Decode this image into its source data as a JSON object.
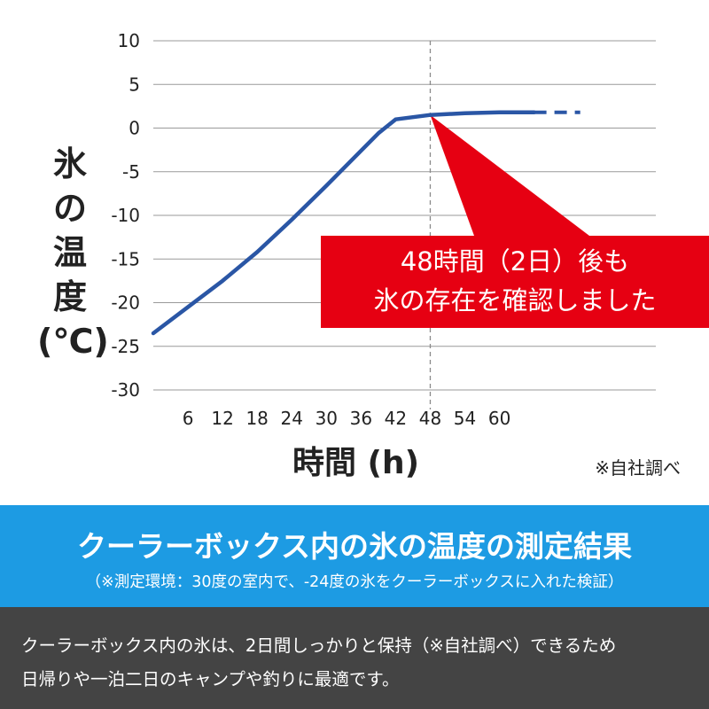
{
  "chart_data": {
    "type": "line",
    "ylabel": "氷の温度(℃)",
    "xlabel": "時間 (h)",
    "x_ticks": [
      6,
      12,
      18,
      24,
      30,
      36,
      42,
      48,
      54,
      60
    ],
    "y_ticks": [
      10,
      5,
      0,
      -5,
      -10,
      -15,
      -20,
      -25,
      -30
    ],
    "xlim": [
      0,
      66
    ],
    "ylim": [
      -30,
      10
    ],
    "grid": "horizontal",
    "series": [
      {
        "color": "#2a56a5",
        "points": [
          [
            0,
            -23.5
          ],
          [
            6,
            -20.5
          ],
          [
            12,
            -17.5
          ],
          [
            18,
            -14.2
          ],
          [
            24,
            -10.5
          ],
          [
            30,
            -6.6
          ],
          [
            36,
            -2.6
          ],
          [
            39,
            -0.6
          ],
          [
            42,
            1.0
          ],
          [
            48,
            1.5
          ],
          [
            54,
            1.7
          ],
          [
            60,
            1.8
          ],
          [
            66,
            1.8
          ]
        ]
      }
    ],
    "projection": {
      "style": "dashed",
      "color": "#2a56a5",
      "points": [
        [
          66,
          1.8
        ],
        [
          74,
          1.8
        ]
      ]
    },
    "reference_line": {
      "x": 48,
      "style": "dashed"
    },
    "annotation": {
      "lines": [
        "48時間（2日）後も",
        "氷の存在を確認しました"
      ],
      "anchor": [
        48,
        1.5
      ],
      "background": "#e60012"
    },
    "source_note": "※自社調べ"
  },
  "band": {
    "title": "クーラーボックス内の氷の温度の測定結果",
    "subtitle": "（※測定環境：30度の室内で、-24度の氷をクーラーボックスに入れた検証）",
    "color": "#1d9be3"
  },
  "footer": {
    "line1": "クーラーボックス内の氷は、2日間しっかりと保持（※自社調べ）できるため",
    "line2": "日帰りや一泊二日のキャンプや釣りに最適です。",
    "color": "#444444"
  }
}
